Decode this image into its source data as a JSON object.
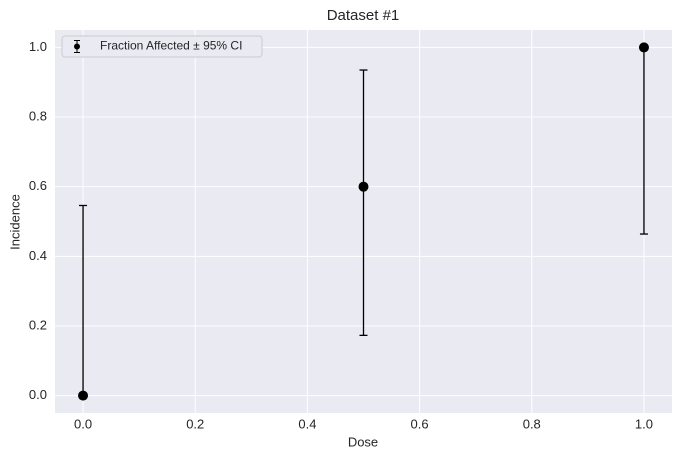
{
  "chart_data": {
    "type": "errorbar",
    "title": "Dataset #1",
    "x_label": "Dose",
    "y_label": "Incidence",
    "series": [
      {
        "name": "Fraction Affected ± 95% CI",
        "color": "#000000",
        "x": [
          0.0,
          0.5,
          1.0
        ],
        "values": [
          0.0,
          0.6,
          1.0
        ],
        "lower": [
          0.0,
          0.173,
          0.464
        ],
        "upper": [
          0.546,
          0.935,
          1.0
        ]
      }
    ],
    "xlim": [
      -0.05,
      1.05
    ],
    "ylim": [
      -0.05,
      1.05
    ],
    "xticks": [
      {
        "value": 0,
        "label": "0.0"
      },
      {
        "value": 0.2,
        "label": "0.2"
      },
      {
        "value": 0.4,
        "label": "0.4"
      },
      {
        "value": 0.6,
        "label": "0.6"
      },
      {
        "value": 0.8,
        "label": "0.8"
      },
      {
        "value": 1,
        "label": "1.0"
      }
    ],
    "yticks": [
      {
        "value": 0,
        "label": "0.0"
      },
      {
        "value": 0.2,
        "label": "0.2"
      },
      {
        "value": 0.4,
        "label": "0.4"
      },
      {
        "value": 0.6,
        "label": "0.6"
      },
      {
        "value": 0.8,
        "label": "0.8"
      },
      {
        "value": 1,
        "label": "1.0"
      }
    ],
    "grid": true,
    "legend": "upper left",
    "background": "#eaeaf2"
  }
}
